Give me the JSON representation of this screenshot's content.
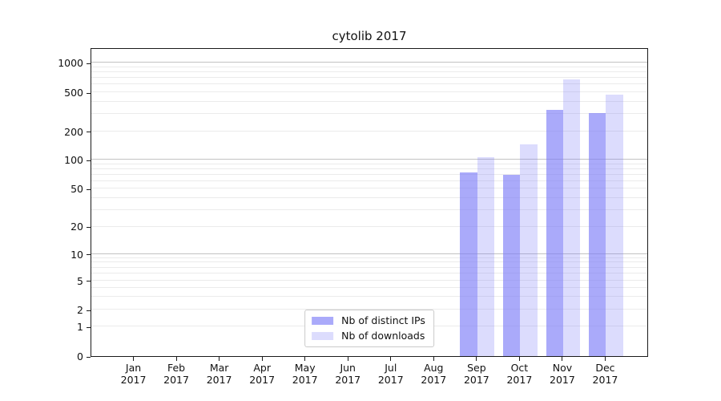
{
  "title": "cytolib 2017",
  "chart_data": {
    "type": "bar",
    "title": "cytolib 2017",
    "categories": [
      "Jan",
      "Feb",
      "Mar",
      "Apr",
      "May",
      "Jun",
      "Jul",
      "Aug",
      "Sep",
      "Oct",
      "Nov",
      "Dec"
    ],
    "year_label": "2017",
    "series": [
      {
        "name": "Nb of distinct IPs",
        "color": "rgba(125,125,248,0.65)",
        "values": [
          null,
          null,
          null,
          null,
          null,
          null,
          null,
          null,
          74,
          70,
          333,
          305
        ]
      },
      {
        "name": "Nb of downloads",
        "color": "rgba(125,125,248,0.27)",
        "values": [
          null,
          null,
          null,
          null,
          null,
          null,
          null,
          null,
          107,
          145,
          680,
          475
        ]
      }
    ],
    "yscale": "symlog",
    "yticks": [
      0,
      1,
      2,
      5,
      10,
      20,
      50,
      100,
      200,
      500,
      1000
    ],
    "ylim": [
      0,
      1400
    ],
    "xlabel": "",
    "ylabel": "",
    "grid": "horizontal major+minor",
    "legend_position": "lower center"
  }
}
